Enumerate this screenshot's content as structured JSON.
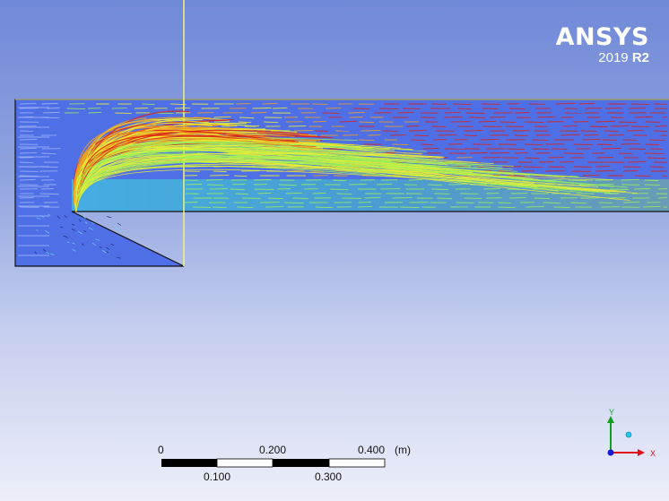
{
  "branding": {
    "product": "ANSYS",
    "year": "2019",
    "release": "R2"
  },
  "scale_bar": {
    "top_labels": [
      "0",
      "0.200",
      "0.400"
    ],
    "bottom_labels": [
      "0.100",
      "0.300"
    ],
    "unit": "(m)"
  },
  "axes": {
    "x_label": "X",
    "y_label": "Y"
  },
  "colors": {
    "geometry_fill": "#4f6fe6",
    "outline": "#111111",
    "plane_line": "#f2f27a",
    "axis_x": "#e0101a",
    "axis_y": "#10a020",
    "axis_z": "#1a1ad0",
    "colormap": [
      "#2a3fe0",
      "#22c8f0",
      "#3ef0b0",
      "#9af05a",
      "#f0f030",
      "#f0a020",
      "#e02010"
    ]
  }
}
